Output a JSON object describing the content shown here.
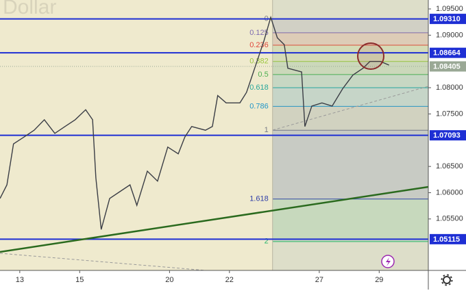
{
  "chart_data": {
    "type": "line",
    "watermark": "Dollar",
    "x": [
      -0.66,
      -0.43,
      -0.21,
      0.14,
      0.48,
      0.82,
      1.17,
      1.51,
      1.85,
      2.2,
      2.43,
      2.54,
      2.72,
      3.0,
      3.34,
      3.68,
      3.91,
      4.26,
      4.6,
      4.94,
      5.29,
      5.51,
      5.74,
      6.2,
      6.43,
      6.61,
      6.89,
      7.35,
      7.57,
      7.92,
      8.15,
      8.38,
      8.6,
      8.83,
      8.95,
      9.41,
      9.52,
      9.75,
      10.09,
      10.43,
      10.78,
      11.12,
      11.46,
      11.69,
      12.04,
      12.33
    ],
    "values": [
      1.0589,
      1.0615,
      1.0693,
      1.0706,
      1.0719,
      1.0739,
      1.0713,
      1.0726,
      1.0739,
      1.0758,
      1.0739,
      1.0628,
      1.053,
      1.0589,
      1.0602,
      1.0615,
      1.0576,
      1.0641,
      1.0622,
      1.0687,
      1.0674,
      1.0706,
      1.0726,
      1.0719,
      1.0726,
      1.0785,
      1.0771,
      1.0771,
      1.0791,
      1.085,
      1.0889,
      1.0934,
      1.0895,
      1.0882,
      1.0837,
      1.083,
      1.0726,
      1.0765,
      1.0771,
      1.0765,
      1.0798,
      1.0824,
      1.0837,
      1.085,
      1.085,
      1.0843
    ],
    "color": "#3a3d45",
    "xlim": [
      -0.66,
      13.64
    ],
    "ylim": [
      1.0452,
      1.0967
    ],
    "xticks": [
      {
        "value": 0,
        "label": "13"
      },
      {
        "value": 2,
        "label": "15"
      },
      {
        "value": 5,
        "label": "20"
      },
      {
        "value": 7,
        "label": "22"
      },
      {
        "value": 10,
        "label": "27"
      },
      {
        "value": 12,
        "label": "29"
      }
    ],
    "yticks": [
      {
        "value": 1.095,
        "label": "1.09500"
      },
      {
        "value": 1.09,
        "label": "1.09000"
      },
      {
        "value": 1.08,
        "label": "1.08000"
      },
      {
        "value": 1.075,
        "label": "1.07500"
      },
      {
        "value": 1.065,
        "label": "1.06500"
      },
      {
        "value": 1.06,
        "label": "1.06000"
      },
      {
        "value": 1.055,
        "label": "1.05500"
      }
    ],
    "levels": [
      {
        "value": 1.0931,
        "label": "1.09310"
      },
      {
        "value": 1.08664,
        "label": "1.08664"
      },
      {
        "value": 1.07093,
        "label": "1.07093"
      },
      {
        "value": 1.05115,
        "label": "1.05115"
      }
    ],
    "level_color": "#1e2fd4",
    "last_price": {
      "value": 1.08405,
      "label": "1.08405"
    },
    "last_price_color": "#9aa895",
    "fib": {
      "start": 8.44,
      "high": 1.0931,
      "low": 1.0719,
      "levels": [
        0,
        0.125,
        0.236,
        0.382,
        0.5,
        0.618,
        0.786,
        1,
        1.618,
        2
      ],
      "colors": [
        "#787b86",
        "#7e6bb0",
        "#e0463a",
        "#9bc53d",
        "#4caf50",
        "#26a69a",
        "#2196c8",
        "#787b86",
        "#2f3ea8",
        "#26b56a"
      ]
    }
  }
}
